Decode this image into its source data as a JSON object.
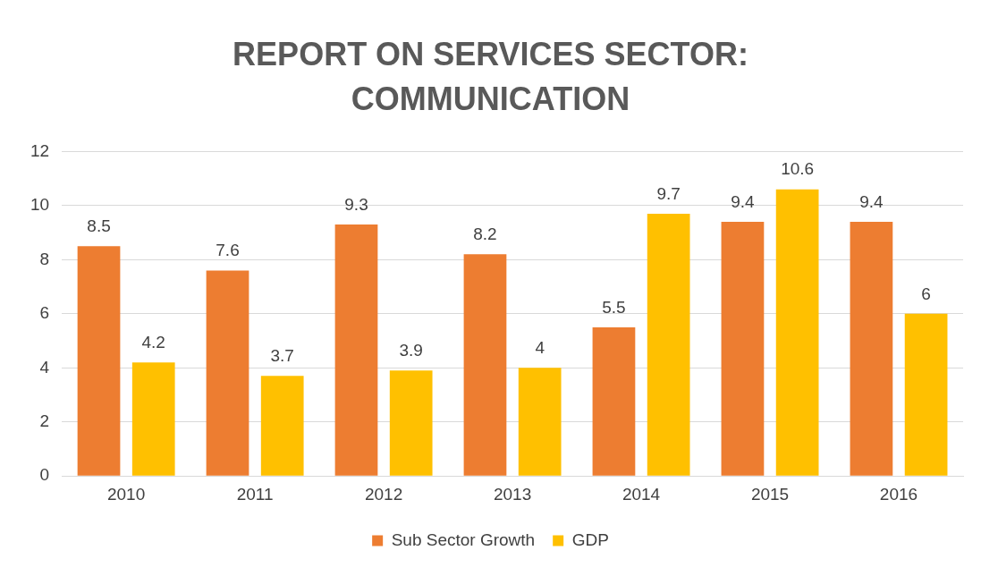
{
  "chart_data": {
    "type": "bar",
    "title": "REPORT ON SERVICES SECTOR: COMMUNICATION",
    "categories": [
      "2010",
      "2011",
      "2012",
      "2013",
      "2014",
      "2015",
      "2016"
    ],
    "series": [
      {
        "name": "Sub Sector Growth",
        "color": "#ed7d31",
        "values": [
          8.5,
          7.6,
          9.3,
          8.2,
          5.5,
          9.4,
          9.4
        ]
      },
      {
        "name": "GDP",
        "color": "#ffc000",
        "values": [
          4.2,
          3.7,
          3.9,
          4,
          9.7,
          10.6,
          6
        ]
      }
    ],
    "ylim": [
      0,
      12
    ],
    "yticks": [
      0,
      2,
      4,
      6,
      8,
      10,
      12
    ],
    "grid": "y",
    "legend": "bottom",
    "data_labels": true
  }
}
